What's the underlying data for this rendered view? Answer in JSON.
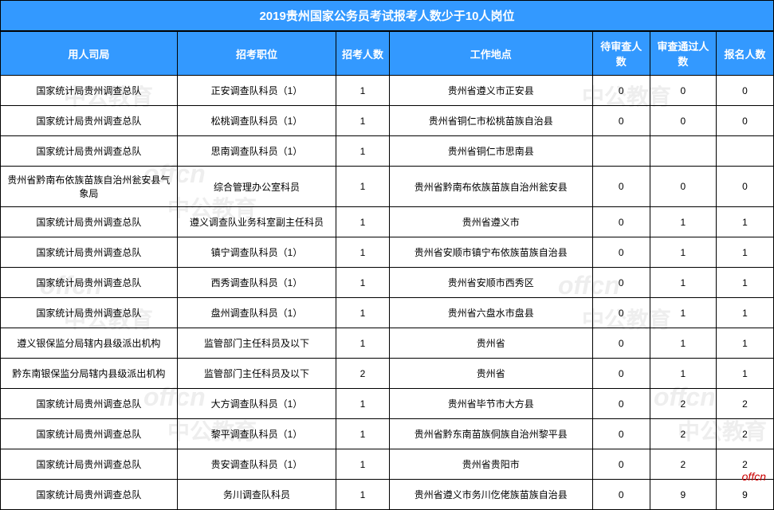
{
  "title": "2019贵州国家公务员考试报考人数少于10人岗位",
  "headers": {
    "department": "用人司局",
    "position": "招考职位",
    "recruit_count": "招考人数",
    "location": "工作地点",
    "pending": "待审查人数",
    "approved": "审查通过人数",
    "applied": "报名人数"
  },
  "rows": [
    {
      "dept": "国家统计局贵州调查总队",
      "pos": "正安调查队科员（1）",
      "count": "1",
      "loc": "贵州省遵义市正安县",
      "pend": "0",
      "appr": "0",
      "apply": "0"
    },
    {
      "dept": "国家统计局贵州调查总队",
      "pos": "松桃调查队科员（1）",
      "count": "1",
      "loc": "贵州省铜仁市松桃苗族自治县",
      "pend": "0",
      "appr": "0",
      "apply": "0"
    },
    {
      "dept": "国家统计局贵州调查总队",
      "pos": "思南调查队科员（1）",
      "count": "1",
      "loc": "贵州省铜仁市思南县",
      "pend": "",
      "appr": "",
      "apply": ""
    },
    {
      "dept": "贵州省黔南布依族苗族自治州瓮安县气象局",
      "pos": "综合管理办公室科员",
      "count": "1",
      "loc": "贵州省黔南布依族苗族自治州瓮安县",
      "pend": "0",
      "appr": "0",
      "apply": "0"
    },
    {
      "dept": "国家统计局贵州调查总队",
      "pos": "遵义调查队业务科室副主任科员",
      "count": "1",
      "loc": "贵州省遵义市",
      "pend": "0",
      "appr": "1",
      "apply": "1"
    },
    {
      "dept": "国家统计局贵州调查总队",
      "pos": "镇宁调查队科员（1）",
      "count": "1",
      "loc": "贵州省安顺市镇宁布依族苗族自治县",
      "pend": "0",
      "appr": "1",
      "apply": "1"
    },
    {
      "dept": "国家统计局贵州调查总队",
      "pos": "西秀调查队科员（1）",
      "count": "1",
      "loc": "贵州省安顺市西秀区",
      "pend": "0",
      "appr": "1",
      "apply": "1"
    },
    {
      "dept": "国家统计局贵州调查总队",
      "pos": "盘州调查队科员（1）",
      "count": "1",
      "loc": "贵州省六盘水市盘县",
      "pend": "0",
      "appr": "1",
      "apply": "1"
    },
    {
      "dept": "遵义银保监分局辖内县级派出机构",
      "pos": "监管部门主任科员及以下",
      "count": "1",
      "loc": "贵州省",
      "pend": "0",
      "appr": "1",
      "apply": "1"
    },
    {
      "dept": "黔东南银保监分局辖内县级派出机构",
      "pos": "监管部门主任科员及以下",
      "count": "2",
      "loc": "贵州省",
      "pend": "0",
      "appr": "1",
      "apply": "1"
    },
    {
      "dept": "国家统计局贵州调查总队",
      "pos": "大方调查队科员（1）",
      "count": "1",
      "loc": "贵州省毕节市大方县",
      "pend": "0",
      "appr": "2",
      "apply": "2"
    },
    {
      "dept": "国家统计局贵州调查总队",
      "pos": "黎平调查队科员（1）",
      "count": "1",
      "loc": "贵州省黔东南苗族侗族自治州黎平县",
      "pend": "0",
      "appr": "2",
      "apply": "2"
    },
    {
      "dept": "国家统计局贵州调查总队",
      "pos": "贵安调查队科员（1）",
      "count": "1",
      "loc": "贵州省贵阳市",
      "pend": "0",
      "appr": "2",
      "apply": "2"
    },
    {
      "dept": "国家统计局贵州调查总队",
      "pos": "务川调查队科员",
      "count": "1",
      "loc": "贵州省遵义市务川仡佬族苗族自治县",
      "pend": "0",
      "appr": "9",
      "apply": "9"
    }
  ],
  "watermarks": {
    "cn": "中公教育",
    "en": "offcn",
    "footer": "offcn"
  },
  "styling": {
    "header_bg": "#3399ff",
    "header_text": "#ffffff",
    "border_color": "#000000",
    "cell_text": "#000000",
    "watermark_color": "rgba(200, 200, 200, 0.3)",
    "footer_color": "#cc0000",
    "title_fontsize": 15,
    "header_fontsize": 13,
    "cell_fontsize": 12
  }
}
